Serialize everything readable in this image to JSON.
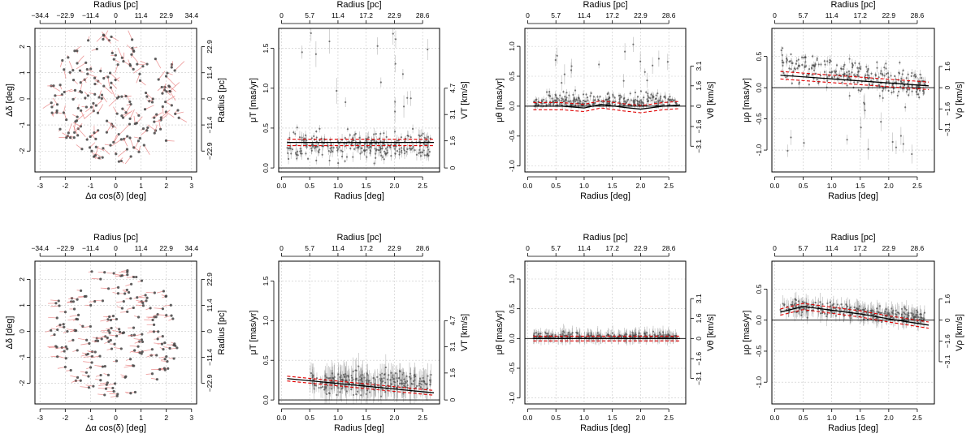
{
  "labels": {
    "top": "Radius [pc]",
    "bottom": "Radius [deg]",
    "map_x": "Δα cos(δ) [deg]",
    "map_y": "Δδ [deg]",
    "map_right": "Radius [pc]",
    "muT": "μT [mas/yr]",
    "VT": "VT [km/s]",
    "muTheta": "μθ [mas/yr]",
    "VTheta": "Vθ [km/s]",
    "muRho": "μρ [mas/yr]",
    "VRho": "Vρ [km/s]"
  },
  "colors": {
    "points": "#444444",
    "errorbars": "#8a8a8a",
    "arrows": "#e87a7a",
    "fit": "#000000",
    "fit_band": "#e00000"
  },
  "chart_data": [
    {
      "id": "row1-map",
      "type": "scatter",
      "xlabel": "Δα cos(δ) [deg]",
      "ylabel": "Δδ [deg]",
      "top_label": "Radius [pc]",
      "right_label": "Radius [pc]",
      "xlim": [
        -3.2,
        3.2
      ],
      "ylim": [
        -2.8,
        2.7
      ],
      "x_ticks": [
        -3,
        -2,
        -1,
        0,
        1,
        2,
        3
      ],
      "y_ticks": [
        -2,
        -1,
        0,
        1,
        2
      ],
      "top_ticks": [
        {
          "v": -3,
          "label": "−34.4"
        },
        {
          "v": -2,
          "label": "−22.9"
        },
        {
          "v": -1,
          "label": "−11.4"
        },
        {
          "v": 0,
          "label": "0"
        },
        {
          "v": 1,
          "label": "11.4"
        },
        {
          "v": 2,
          "label": "22.9"
        },
        {
          "v": 3,
          "label": "34.4"
        }
      ],
      "right_ticks": [
        {
          "v": -2,
          "label": "−22.9"
        },
        {
          "v": -1,
          "label": "−11.4"
        },
        {
          "v": 0,
          "label": "0"
        },
        {
          "v": 1,
          "label": "11.4"
        },
        {
          "v": 2,
          "label": "22.9"
        }
      ],
      "n_stars": 190,
      "seed": 11,
      "arrow_scale": 0.55,
      "arrow_dir": "mixed"
    },
    {
      "id": "row1-muT",
      "type": "scatter",
      "xlabel": "Radius [deg]",
      "ylabel": "μT [mas/yr]",
      "top_label": "Radius [pc]",
      "right_label": "VT [km/s]",
      "xlim": [
        -0.05,
        2.8
      ],
      "ylim": [
        -0.05,
        1.75
      ],
      "x_ticks": [
        0.0,
        0.5,
        1.0,
        1.5,
        2.0,
        2.5
      ],
      "y_ticks": [
        0.0,
        0.5,
        1.0,
        1.5
      ],
      "top_ticks": [
        {
          "v": 0.0,
          "label": "0"
        },
        {
          "v": 0.5,
          "label": "5.7"
        },
        {
          "v": 1.0,
          "label": "11.4"
        },
        {
          "v": 1.5,
          "label": "17.2"
        },
        {
          "v": 2.0,
          "label": "22.9"
        },
        {
          "v": 2.5,
          "label": "28.6"
        }
      ],
      "right_ticks": [
        {
          "v": 0.0,
          "label": "0"
        },
        {
          "v": 0.34,
          "label": "1.6"
        },
        {
          "v": 0.67,
          "label": "3.1"
        },
        {
          "v": 1.0,
          "label": "4.7"
        }
      ],
      "zero_line": 0.0,
      "fit_x": [
        0.1,
        2.7
      ],
      "fit_y": [
        0.32,
        0.32
      ],
      "band": 0.04,
      "points": {
        "n": 300,
        "seed": 21,
        "center": 0.28,
        "slope": 0.0,
        "spread": 0.16,
        "err": 0.05,
        "outliers": 18,
        "outlier_max": 1.7,
        "xmin": 0.1,
        "xmax": 2.65
      }
    },
    {
      "id": "row1-muTheta",
      "type": "scatter",
      "xlabel": "Radius [deg]",
      "ylabel": "μθ [mas/yr]",
      "top_label": "Radius [pc]",
      "right_label": "Vθ [km/s]",
      "xlim": [
        -0.05,
        2.8
      ],
      "ylim": [
        -1.1,
        1.3
      ],
      "x_ticks": [
        0.0,
        0.5,
        1.0,
        1.5,
        2.0,
        2.5
      ],
      "y_ticks": [
        -1.0,
        -0.5,
        0.0,
        0.5,
        1.0
      ],
      "top_ticks": [
        {
          "v": 0.0,
          "label": "0"
        },
        {
          "v": 0.5,
          "label": "5.7"
        },
        {
          "v": 1.0,
          "label": "11.4"
        },
        {
          "v": 1.5,
          "label": "17.2"
        },
        {
          "v": 2.0,
          "label": "22.9"
        },
        {
          "v": 2.5,
          "label": "28.6"
        }
      ],
      "right_ticks": [
        {
          "v": -0.67,
          "label": "−3.1"
        },
        {
          "v": -0.34,
          "label": "−1.6"
        },
        {
          "v": 0.0,
          "label": "0"
        },
        {
          "v": 0.34,
          "label": "1.6"
        },
        {
          "v": 0.67,
          "label": "3.1"
        }
      ],
      "zero_line": 0.0,
      "fit_x": [
        0.1,
        0.6,
        1.0,
        1.3,
        1.7,
        2.0,
        2.4,
        2.7
      ],
      "fit_y": [
        0.0,
        0.0,
        -0.03,
        0.03,
        -0.02,
        -0.05,
        0.0,
        0.02
      ],
      "band": 0.06,
      "points": {
        "n": 300,
        "seed": 31,
        "center": 0.0,
        "slope": 0.0,
        "spread": 0.2,
        "err": 0.05,
        "outliers": 16,
        "outlier_max": 1.2,
        "xmin": 0.1,
        "xmax": 2.65
      }
    },
    {
      "id": "row1-muRho",
      "type": "scatter",
      "xlabel": "Radius [deg]",
      "ylabel": "μρ [mas/yr]",
      "top_label": "Radius [pc]",
      "right_label": "Vρ [km/s]",
      "xlim": [
        -0.05,
        2.8
      ],
      "ylim": [
        -1.35,
        0.95
      ],
      "x_ticks": [
        0.0,
        0.5,
        1.0,
        1.5,
        2.0,
        2.5
      ],
      "y_ticks": [
        -1.0,
        -0.5,
        0.0,
        0.5
      ],
      "top_ticks": [
        {
          "v": 0.0,
          "label": "0"
        },
        {
          "v": 0.5,
          "label": "5.7"
        },
        {
          "v": 1.0,
          "label": "11.4"
        },
        {
          "v": 1.5,
          "label": "17.2"
        },
        {
          "v": 2.0,
          "label": "22.9"
        },
        {
          "v": 2.5,
          "label": "28.6"
        }
      ],
      "right_ticks": [
        {
          "v": -0.67,
          "label": "−3.1"
        },
        {
          "v": -0.34,
          "label": "−1.6"
        },
        {
          "v": 0.0,
          "label": "0"
        },
        {
          "v": 0.34,
          "label": "1.6"
        }
      ],
      "zero_line": 0.0,
      "fit_x": [
        0.1,
        2.7
      ],
      "fit_y": [
        0.2,
        0.03
      ],
      "band": 0.06,
      "points": {
        "n": 300,
        "seed": 41,
        "center": 0.2,
        "slope": -0.07,
        "spread": 0.22,
        "err": 0.05,
        "outliers": 16,
        "outlier_max": -1.2,
        "xmin": 0.1,
        "xmax": 2.65
      }
    },
    {
      "id": "row2-map",
      "type": "scatter",
      "xlabel": "Δα cos(δ) [deg]",
      "ylabel": "Δδ [deg]",
      "top_label": "Radius [pc]",
      "right_label": "Radius [pc]",
      "xlim": [
        -3.2,
        3.2
      ],
      "ylim": [
        -2.8,
        2.7
      ],
      "x_ticks": [
        -3,
        -2,
        -1,
        0,
        1,
        2,
        3
      ],
      "y_ticks": [
        -2,
        -1,
        0,
        1,
        2
      ],
      "top_ticks": [
        {
          "v": -3,
          "label": "−34.4"
        },
        {
          "v": -2,
          "label": "−22.9"
        },
        {
          "v": -1,
          "label": "−11.4"
        },
        {
          "v": 0,
          "label": "0"
        },
        {
          "v": 1,
          "label": "11.4"
        },
        {
          "v": 2,
          "label": "22.9"
        },
        {
          "v": 3,
          "label": "34.4"
        }
      ],
      "right_ticks": [
        {
          "v": -2,
          "label": "−22.9"
        },
        {
          "v": -1,
          "label": "−11.4"
        },
        {
          "v": 0,
          "label": "0"
        },
        {
          "v": 1,
          "label": "11.4"
        },
        {
          "v": 2,
          "label": "22.9"
        }
      ],
      "n_stars": 190,
      "seed": 13,
      "arrow_scale": 0.45,
      "arrow_dir": "aligned"
    },
    {
      "id": "row2-muT",
      "type": "scatter",
      "xlabel": "Radius [deg]",
      "ylabel": "μT [mas/yr]",
      "top_label": "Radius [pc]",
      "right_label": "VT [km/s]",
      "xlim": [
        -0.05,
        2.8
      ],
      "ylim": [
        -0.05,
        1.75
      ],
      "x_ticks": [
        0.0,
        0.5,
        1.0,
        1.5,
        2.0,
        2.5
      ],
      "y_ticks": [
        0.0,
        0.5,
        1.0,
        1.5
      ],
      "top_ticks": [
        {
          "v": 0.0,
          "label": "0"
        },
        {
          "v": 0.5,
          "label": "5.7"
        },
        {
          "v": 1.0,
          "label": "11.4"
        },
        {
          "v": 1.5,
          "label": "17.2"
        },
        {
          "v": 2.0,
          "label": "22.9"
        },
        {
          "v": 2.5,
          "label": "28.6"
        }
      ],
      "right_ticks": [
        {
          "v": 0.0,
          "label": "0"
        },
        {
          "v": 0.34,
          "label": "1.6"
        },
        {
          "v": 0.67,
          "label": "3.1"
        },
        {
          "v": 1.0,
          "label": "4.7"
        }
      ],
      "zero_line": 0.0,
      "fit_x": [
        0.1,
        2.7
      ],
      "fit_y": [
        0.27,
        0.09
      ],
      "band": 0.03,
      "points": {
        "n": 300,
        "seed": 51,
        "center": 0.22,
        "slope": 0.0,
        "spread": 0.13,
        "err": 0.12,
        "outliers": 0,
        "outlier_max": 0.6,
        "xmin": 0.5,
        "xmax": 2.65
      }
    },
    {
      "id": "row2-muTheta",
      "type": "scatter",
      "xlabel": "Radius [deg]",
      "ylabel": "μθ [mas/yr]",
      "top_label": "Radius [pc]",
      "right_label": "Vθ [km/s]",
      "xlim": [
        -0.05,
        2.8
      ],
      "ylim": [
        -1.1,
        1.3
      ],
      "x_ticks": [
        0.0,
        0.5,
        1.0,
        1.5,
        2.0,
        2.5
      ],
      "y_ticks": [
        -1.0,
        -0.5,
        0.0,
        0.5,
        1.0
      ],
      "top_ticks": [
        {
          "v": 0.0,
          "label": "0"
        },
        {
          "v": 0.5,
          "label": "5.7"
        },
        {
          "v": 1.0,
          "label": "11.4"
        },
        {
          "v": 1.5,
          "label": "17.2"
        },
        {
          "v": 2.0,
          "label": "22.9"
        },
        {
          "v": 2.5,
          "label": "28.6"
        }
      ],
      "right_ticks": [
        {
          "v": -0.67,
          "label": "−3.1"
        },
        {
          "v": -0.34,
          "label": "−1.6"
        },
        {
          "v": 0.0,
          "label": "0"
        },
        {
          "v": 0.34,
          "label": "1.6"
        },
        {
          "v": 0.67,
          "label": "3.1"
        }
      ],
      "zero_line": 0.0,
      "fit_x": [
        0.1,
        2.7
      ],
      "fit_y": [
        0.0,
        0.0
      ],
      "band": 0.04,
      "points": {
        "n": 300,
        "seed": 61,
        "center": 0.0,
        "slope": 0.0,
        "spread": 0.09,
        "err": 0.08,
        "outliers": 0,
        "outlier_max": 0.3,
        "xmin": 0.1,
        "xmax": 2.65
      }
    },
    {
      "id": "row2-muRho",
      "type": "scatter",
      "xlabel": "Radius [deg]",
      "ylabel": "μρ [mas/yr]",
      "top_label": "Radius [pc]",
      "right_label": "Vρ [km/s]",
      "xlim": [
        -0.05,
        2.8
      ],
      "ylim": [
        -1.35,
        0.95
      ],
      "x_ticks": [
        0.0,
        0.5,
        1.0,
        1.5,
        2.0,
        2.5
      ],
      "y_ticks": [
        -1.0,
        -0.5,
        0.0,
        0.5
      ],
      "top_ticks": [
        {
          "v": 0.0,
          "label": "0"
        },
        {
          "v": 0.5,
          "label": "5.7"
        },
        {
          "v": 1.0,
          "label": "11.4"
        },
        {
          "v": 1.5,
          "label": "17.2"
        },
        {
          "v": 2.0,
          "label": "22.9"
        },
        {
          "v": 2.5,
          "label": "28.6"
        }
      ],
      "right_ticks": [
        {
          "v": -0.67,
          "label": "−3.1"
        },
        {
          "v": -0.34,
          "label": "−1.6"
        },
        {
          "v": 0.0,
          "label": "0"
        },
        {
          "v": 0.34,
          "label": "1.6"
        }
      ],
      "zero_line": 0.0,
      "fit_x": [
        0.1,
        0.5,
        1.0,
        1.5,
        2.0,
        2.7
      ],
      "fit_y": [
        0.13,
        0.22,
        0.16,
        0.1,
        0.02,
        -0.08
      ],
      "band": 0.05,
      "points": {
        "n": 300,
        "seed": 71,
        "center": 0.14,
        "slope": -0.04,
        "spread": 0.1,
        "err": 0.1,
        "outliers": 0,
        "outlier_max": 0.5,
        "xmin": 0.1,
        "xmax": 2.65
      }
    }
  ]
}
